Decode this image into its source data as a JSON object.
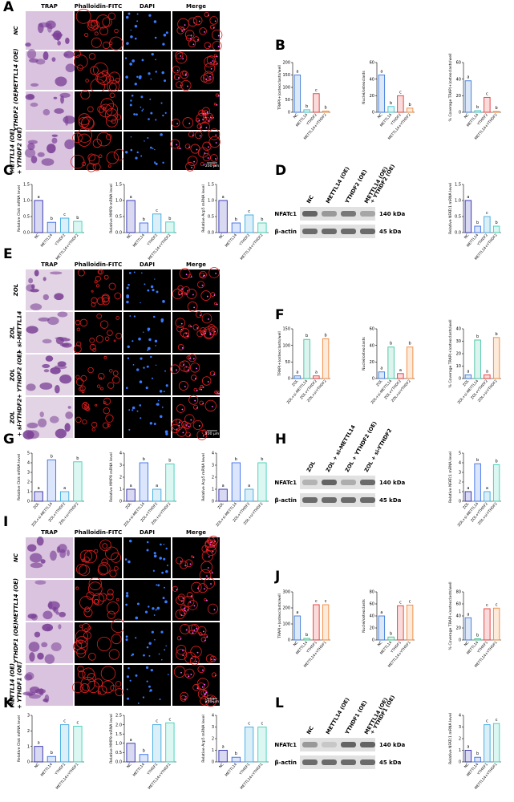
{
  "panel_letters": [
    "A",
    "B",
    "C",
    "D",
    "E",
    "F",
    "G",
    "H",
    "I",
    "J",
    "K",
    "L"
  ],
  "image_panels": [
    {
      "headers": [
        "TRAP",
        "Phalloidin-FITC",
        "DAPI",
        "Merge"
      ],
      "rows": [
        [
          "NC"
        ],
        [
          "METTL14 (OE)"
        ],
        [
          "YTHDF2 (OE)"
        ],
        [
          "METTL14 (OE)",
          "+ YTHDF2 (OE)"
        ]
      ],
      "scale_bar": "200 μm"
    },
    {
      "headers": [
        "TRAP",
        "Phalloidin-FITC",
        "DAPI",
        "Merge"
      ],
      "rows": [
        [
          "ZOL"
        ],
        [
          "ZOL",
          "+ si-METTL14"
        ],
        [
          "ZOL",
          "+ YTHDF2 (OE)"
        ],
        [
          "ZOL",
          "+ si-YTHDF2"
        ]
      ],
      "scale_bar": "200 μm"
    },
    {
      "headers": [
        "TRAP",
        "Phalloidin-FITC",
        "DAPI",
        "Merge"
      ],
      "rows": [
        [
          "NC"
        ],
        [
          "METTL14 (OE)"
        ],
        [
          "YTHDF1 (OE)"
        ],
        [
          "METTL14 (OE)",
          "+ YTHDF1 (OE)"
        ]
      ],
      "scale_bar": "200 μm"
    }
  ],
  "blots": [
    {
      "lanes": [
        [
          "NC"
        ],
        [
          "METTL14 (OE)"
        ],
        [
          "YTHDF2 (OE)"
        ],
        [
          "METTL14 (OE)",
          "+ YTHDF2 (OE)"
        ]
      ],
      "bands": [
        {
          "name": "NFATc1",
          "size": "140 kDa"
        },
        {
          "name": "β-actin",
          "size": "45 kDa"
        }
      ]
    },
    {
      "lanes": [
        [
          "ZOL"
        ],
        [
          "ZOL + si-METTL14"
        ],
        [
          "ZOL + YTHDF2 (OE)"
        ],
        [
          "ZOL + si-YTHDF2"
        ]
      ],
      "bands": [
        {
          "name": "NFATc1",
          "size": "140 kDa"
        },
        {
          "name": "β-actin",
          "size": "45 kDa"
        }
      ]
    },
    {
      "lanes": [
        [
          "NC"
        ],
        [
          "METTL14 (OE)"
        ],
        [
          "YTHDF1 (OE)"
        ],
        [
          "METTL14 (OE)",
          "+ YTHDF1 (OE)"
        ]
      ],
      "bands": [
        {
          "name": "NFATc1",
          "size": "140 kDa"
        },
        {
          "name": "β-actin",
          "size": "45 kDa"
        }
      ]
    }
  ],
  "chart_data": [
    {
      "type": "bar",
      "ylabel": "TRAP(+)osteoclasts/well",
      "categories": [
        "NC",
        "METTL14",
        "YTHDF2",
        "METTL14+YTHDF2"
      ],
      "values": [
        150,
        10,
        75,
        5
      ],
      "annotations": [
        "a",
        "b",
        "c",
        "b"
      ],
      "colors": [
        "#3b78d8",
        "#40c4c8",
        "#e53935",
        "#f0883a"
      ],
      "ylim": [
        0,
        200
      ],
      "yticks": [
        0,
        50,
        100,
        150,
        200
      ]
    },
    {
      "type": "bar",
      "ylabel": "Nuclei/osteoclasts",
      "categories": [
        "NC",
        "METTL14",
        "YTHDF2",
        "METTL14+YTHDF2"
      ],
      "values": [
        45,
        7,
        20,
        5
      ],
      "annotations": [
        "a",
        "b",
        "c",
        "b"
      ],
      "colors": [
        "#3b78d8",
        "#40c4c8",
        "#e53935",
        "#f0883a"
      ],
      "ylim": [
        0,
        60
      ],
      "yticks": [
        0,
        20,
        40,
        60
      ]
    },
    {
      "type": "bar",
      "ylabel": "% Coverage TRAP(+)osteoclasts/well",
      "categories": [
        "NC",
        "METTL14",
        "YTHDF2",
        "METTL14+YTHDF2"
      ],
      "values": [
        38,
        2,
        18,
        1
      ],
      "annotations": [
        "a",
        "b",
        "c",
        "b"
      ],
      "colors": [
        "#3b78d8",
        "#40c4c8",
        "#e53935",
        "#f0883a"
      ],
      "ylim": [
        0,
        60
      ],
      "yticks": [
        0,
        20,
        40,
        60
      ]
    },
    {
      "type": "bar",
      "ylabel": "Relative Ctsk mRNA level",
      "categories": [
        "NC",
        "METTL14",
        "YTHDF2",
        "METTL14+YTHDF2"
      ],
      "values": [
        1.0,
        0.32,
        0.45,
        0.35
      ],
      "annotations": [
        "a",
        "b",
        "c",
        "b"
      ],
      "colors": [
        "#2a2ab0",
        "#3a6ee8",
        "#3aa8e0",
        "#3ccfb8"
      ],
      "ylim": [
        0,
        1.5
      ],
      "yticks": [
        {
          "value": 0,
          "label": "0.0"
        },
        0.5,
        {
          "value": 1,
          "label": "1.0"
        },
        1.5
      ]
    },
    {
      "type": "bar",
      "ylabel": "Relative MMP9 mRNA level",
      "categories": [
        "NC",
        "METTL14",
        "YTHDF2",
        "METTL14+YTHDF2"
      ],
      "values": [
        1.0,
        0.3,
        0.58,
        0.33
      ],
      "annotations": [
        "a",
        "b",
        "c",
        "b"
      ],
      "colors": [
        "#2a2ab0",
        "#3a6ee8",
        "#3aa8e0",
        "#3ccfb8"
      ],
      "ylim": [
        0,
        1.5
      ],
      "yticks": [
        {
          "value": 0,
          "label": "0.0"
        },
        0.5,
        {
          "value": 1,
          "label": "1.0"
        },
        1.5
      ]
    },
    {
      "type": "bar",
      "ylabel": "Relative Acp5 mRNA level",
      "categories": [
        "NC",
        "METTL14",
        "YTHDF2",
        "METTL14+YTHDF2"
      ],
      "values": [
        1.0,
        0.3,
        0.55,
        0.3
      ],
      "annotations": [
        "a",
        "b",
        "c",
        "b"
      ],
      "colors": [
        "#2a2ab0",
        "#3a6ee8",
        "#3aa8e0",
        "#3ccfb8"
      ],
      "ylim": [
        0,
        1.5
      ],
      "yticks": [
        {
          "value": 0,
          "label": "0.0"
        },
        0.5,
        {
          "value": 1,
          "label": "1.0"
        },
        1.5
      ]
    },
    {
      "type": "bar",
      "ylabel": "Relative NFATc1 mRNA level",
      "categories": [
        "NC",
        "METTL14",
        "YTHDF2",
        "METTL14+YTHDF2"
      ],
      "values": [
        1.0,
        0.2,
        0.5,
        0.2
      ],
      "annotations": [
        "a",
        "b",
        "c",
        "b"
      ],
      "colors": [
        "#2a2ab0",
        "#3a6ee8",
        "#3aa8e0",
        "#3ccfb8"
      ],
      "ylim": [
        0,
        1.5
      ],
      "yticks": [
        {
          "value": 0,
          "label": "0.0"
        },
        0.5,
        {
          "value": 1,
          "label": "1.0"
        },
        1.5
      ]
    },
    {
      "type": "bar",
      "ylabel": "TRAP(+)osteoclasts/well",
      "categories": [
        "ZOL",
        "ZOL+si-METTL14",
        "ZOL+YTHDF2",
        "ZOL+si-YTHDF2"
      ],
      "values": [
        8,
        118,
        8,
        120
      ],
      "annotations": [
        "a",
        "b",
        "a",
        "b"
      ],
      "colors": [
        "#3b78d8",
        "#40c4a0",
        "#e53935",
        "#f0883a"
      ],
      "ylim": [
        0,
        150
      ],
      "yticks": [
        0,
        50,
        100,
        150
      ]
    },
    {
      "type": "bar",
      "ylabel": "Nuclei/osteoclasts",
      "categories": [
        "ZOL",
        "ZOL+si-METTL14",
        "ZOL+YTHDF2",
        "ZOL+si-YTHDF2"
      ],
      "values": [
        8,
        38,
        6,
        38
      ],
      "annotations": [
        "a",
        "b",
        "a",
        "b"
      ],
      "colors": [
        "#3b78d8",
        "#40c4a0",
        "#e53935",
        "#f0883a"
      ],
      "ylim": [
        0,
        60
      ],
      "yticks": [
        0,
        20,
        40,
        60
      ]
    },
    {
      "type": "bar",
      "ylabel": "% Coverage TRAP(+)osteoclasts/well",
      "categories": [
        "ZOL",
        "ZOL+si-METTL14",
        "ZOL+YTHDF2",
        "ZOL+si-YTHDF2"
      ],
      "values": [
        3,
        31,
        3,
        33
      ],
      "annotations": [
        "a",
        "b",
        "a",
        "b"
      ],
      "colors": [
        "#3b78d8",
        "#40c4a0",
        "#e53935",
        "#f0883a"
      ],
      "ylim": [
        0,
        40
      ],
      "yticks": [
        0,
        10,
        20,
        30,
        40
      ]
    },
    {
      "type": "bar",
      "ylabel": "Relative Ctsk mRNA level",
      "categories": [
        "ZOL",
        "ZOL+si-METTL14",
        "ZOL+YTHDF2",
        "ZOL+si-YTHDF2"
      ],
      "values": [
        1,
        4.3,
        1,
        4.1
      ],
      "annotations": [
        "a",
        "b",
        "a",
        "b"
      ],
      "colors": [
        "#2a2ab0",
        "#3a6ee8",
        "#3aa8e0",
        "#3ccfb8"
      ],
      "ylim": [
        0,
        5
      ],
      "yticks": [
        0,
        1,
        2,
        3,
        4,
        5
      ]
    },
    {
      "type": "bar",
      "ylabel": "Relative MMP9 mRNA level",
      "categories": [
        "ZOL",
        "ZOL+si-METTL14",
        "ZOL+YTHDF2",
        "ZOL+si-YTHDF2"
      ],
      "values": [
        1,
        3.2,
        1,
        3.1
      ],
      "annotations": [
        "a",
        "b",
        "a",
        "b"
      ],
      "colors": [
        "#2a2ab0",
        "#3a6ee8",
        "#3aa8e0",
        "#3ccfb8"
      ],
      "ylim": [
        0,
        4
      ],
      "yticks": [
        0,
        1,
        2,
        3,
        4
      ]
    },
    {
      "type": "bar",
      "ylabel": "Relative Acp5 mRNA level",
      "categories": [
        "ZOL",
        "ZOL+si-METTL14",
        "ZOL+YTHDF2",
        "ZOL+si-YTHDF2"
      ],
      "values": [
        1,
        3.2,
        1,
        3.2
      ],
      "annotations": [
        "a",
        "b",
        "a",
        "b"
      ],
      "colors": [
        "#2a2ab0",
        "#3a6ee8",
        "#3aa8e0",
        "#3ccfb8"
      ],
      "ylim": [
        0,
        4
      ],
      "yticks": [
        0,
        1,
        2,
        3,
        4
      ]
    },
    {
      "type": "bar",
      "ylabel": "Relative NFATc1 mRNA level",
      "categories": [
        "ZOL",
        "ZOL+si-METTL14",
        "ZOL+YTHDF2",
        "ZOL+si-YTHDF2"
      ],
      "values": [
        1,
        3.9,
        1,
        3.8
      ],
      "annotations": [
        "a",
        "b",
        "a",
        "b"
      ],
      "colors": [
        "#2a2ab0",
        "#3a6ee8",
        "#3aa8e0",
        "#3ccfb8"
      ],
      "ylim": [
        0,
        5
      ],
      "yticks": [
        0,
        1,
        2,
        3,
        4,
        5
      ]
    },
    {
      "type": "bar",
      "ylabel": "TRAP(+)osteoclasts/well",
      "categories": [
        "NC",
        "METTL14",
        "YTHDF1",
        "METTL14+YTHDF1"
      ],
      "values": [
        150,
        10,
        220,
        220
      ],
      "annotations": [
        "a",
        "b",
        "c",
        "c"
      ],
      "colors": [
        "#3b78d8",
        "#40c490",
        "#e53935",
        "#f0883a"
      ],
      "ylim": [
        0,
        300
      ],
      "yticks": [
        0,
        100,
        200,
        300
      ]
    },
    {
      "type": "bar",
      "ylabel": "Nuclei/osteoclasts",
      "categories": [
        "NC",
        "METTL14",
        "YTHDF1",
        "METTL14+YTHDF1"
      ],
      "values": [
        40,
        5,
        57,
        58
      ],
      "annotations": [
        "a",
        "b",
        "c",
        "c"
      ],
      "colors": [
        "#3b78d8",
        "#40c490",
        "#e53935",
        "#f0883a"
      ],
      "ylim": [
        0,
        80
      ],
      "yticks": [
        0,
        20,
        40,
        60,
        80
      ]
    },
    {
      "type": "bar",
      "ylabel": "% Coverage TRAP(+)osteoclasts/well",
      "categories": [
        "NC",
        "METTL14",
        "YTHDF1",
        "METTL14+YTHDF1"
      ],
      "values": [
        37,
        2,
        52,
        53
      ],
      "annotations": [
        "a",
        "b",
        "c",
        "c"
      ],
      "colors": [
        "#3b78d8",
        "#40c490",
        "#e53935",
        "#f0883a"
      ],
      "ylim": [
        0,
        80
      ],
      "yticks": [
        0,
        20,
        40,
        60,
        80
      ]
    },
    {
      "type": "bar",
      "ylabel": "Relative Ctsk mRNA level",
      "categories": [
        "NC",
        "METTL14",
        "YTHDF1",
        "METTL14+YTHDF1"
      ],
      "values": [
        1,
        0.35,
        2.4,
        2.3
      ],
      "annotations": [
        "a",
        "b",
        "c",
        "c"
      ],
      "colors": [
        "#2a2ab0",
        "#3a6ee8",
        "#3aa8e0",
        "#3ccfb8"
      ],
      "ylim": [
        0,
        3
      ],
      "yticks": [
        0,
        1,
        2,
        3
      ]
    },
    {
      "type": "bar",
      "ylabel": "Relative MMP9 mRNA level",
      "categories": [
        "NC",
        "METTL14",
        "YTHDF1",
        "METTL14+YTHDF1"
      ],
      "values": [
        1,
        0.4,
        2.0,
        2.1
      ],
      "annotations": [
        "a",
        "b",
        "c",
        "c"
      ],
      "colors": [
        "#2a2ab0",
        "#3a6ee8",
        "#3aa8e0",
        "#3ccfb8"
      ],
      "ylim": [
        0,
        2.5
      ],
      "yticks": [
        {
          "value": 0,
          "label": "0.0"
        },
        0.5,
        {
          "value": 1,
          "label": "1.0"
        },
        1.5,
        {
          "value": 2,
          "label": "2.0"
        },
        2.5
      ]
    },
    {
      "type": "bar",
      "ylabel": "Relative Acp5 mRNA level",
      "categories": [
        "NC",
        "METTL14",
        "YTHDF1",
        "METTL14+YTHDF1"
      ],
      "values": [
        1,
        0.4,
        3.0,
        3.0
      ],
      "annotations": [
        "a",
        "b",
        "c",
        "c"
      ],
      "colors": [
        "#2a2ab0",
        "#3a6ee8",
        "#3aa8e0",
        "#3ccfb8"
      ],
      "ylim": [
        0,
        4
      ],
      "yticks": [
        0,
        1,
        2,
        3,
        4
      ]
    },
    {
      "type": "bar",
      "ylabel": "Relative NFATc1 mRNA level",
      "categories": [
        "NC",
        "METTL14",
        "YTHDF1",
        "METTL14+YTHDF1"
      ],
      "values": [
        1,
        0.4,
        3.2,
        3.3
      ],
      "annotations": [
        "a",
        "b",
        "c",
        "c"
      ],
      "colors": [
        "#2a2ab0",
        "#3a6ee8",
        "#3aa8e0",
        "#3ccfb8"
      ],
      "ylim": [
        0,
        4
      ],
      "yticks": [
        0,
        1,
        2,
        3,
        4
      ]
    }
  ]
}
